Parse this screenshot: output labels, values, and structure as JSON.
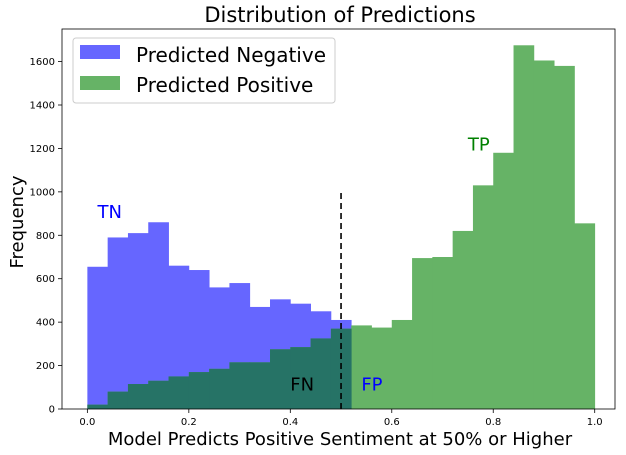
{
  "chart_data": {
    "type": "bar",
    "title": "Distribution of Predictions",
    "xlabel": "Model Predicts Positive Sentiment at 50% or Higher",
    "ylabel": "Frequency",
    "xlim": [
      -0.05,
      1.04
    ],
    "ylim": [
      0,
      1750
    ],
    "x_ticks": [
      0.0,
      0.2,
      0.4,
      0.6,
      0.8,
      1.0
    ],
    "x_tick_labels": [
      "0.0",
      "0.2",
      "0.4",
      "0.6",
      "0.8",
      "1.0"
    ],
    "y_ticks": [
      0,
      200,
      400,
      600,
      800,
      1000,
      1200,
      1400,
      1600
    ],
    "y_tick_labels": [
      "0",
      "200",
      "400",
      "600",
      "800",
      "1000",
      "1200",
      "1400",
      "1600"
    ],
    "grid": false,
    "legend_position": "upper-left",
    "bin_width": 0.04,
    "bin_starts": [
      0.0,
      0.04,
      0.08,
      0.12,
      0.16,
      0.2,
      0.24,
      0.28,
      0.32,
      0.36,
      0.4,
      0.44,
      0.48,
      0.52,
      0.56,
      0.6,
      0.64,
      0.68,
      0.72,
      0.76,
      0.8,
      0.84,
      0.88,
      0.92,
      0.96
    ],
    "series": [
      {
        "name": "Predicted Negative",
        "color": "#6666ff",
        "values": [
          655,
          790,
          810,
          860,
          660,
          640,
          560,
          580,
          470,
          505,
          485,
          450,
          410,
          0,
          0,
          0,
          0,
          0,
          0,
          0,
          0,
          0,
          0,
          0,
          0
        ]
      },
      {
        "name": "Predicted Positive",
        "color": "#66b366",
        "values": [
          20,
          80,
          115,
          130,
          150,
          170,
          185,
          215,
          215,
          275,
          285,
          325,
          370,
          385,
          375,
          410,
          695,
          700,
          820,
          1030,
          1180,
          1675,
          1605,
          1580,
          855
        ]
      }
    ],
    "overlap_color": "#267366",
    "threshold_line": {
      "x": 0.5,
      "y_range": [
        0,
        1000
      ],
      "style": "dashed",
      "color": "#000000"
    },
    "annotations": [
      {
        "text": "TN",
        "x": 0.02,
        "y": 880,
        "color": "#0000ff"
      },
      {
        "text": "TP",
        "x": 0.75,
        "y": 1190,
        "color": "#008000"
      },
      {
        "text": "FN",
        "x": 0.4,
        "y": 85,
        "color": "#000000"
      },
      {
        "text": "FP",
        "x": 0.54,
        "y": 85,
        "color": "#0000ff"
      }
    ]
  }
}
